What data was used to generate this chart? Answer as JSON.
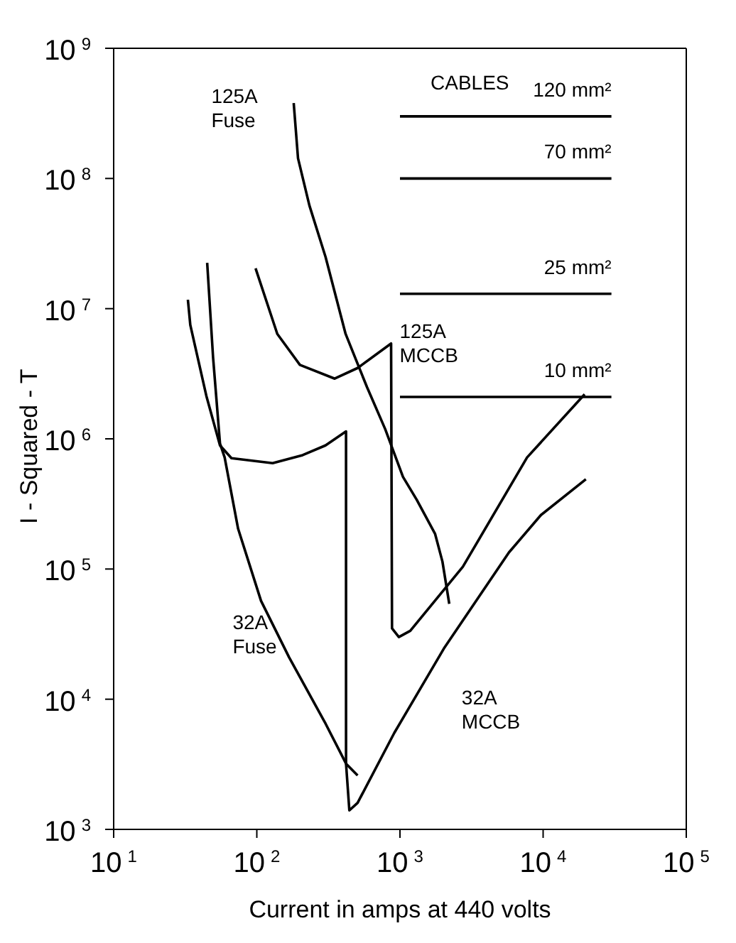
{
  "chart_data": {
    "type": "line",
    "xlabel": "Current in amps at 440 volts",
    "ylabel": "I - Squared - T",
    "log": "xy",
    "legend": false,
    "marker": "none",
    "line_style": "solid",
    "xlim": [
      10,
      100000
    ],
    "ylim": [
      1000,
      1000000000
    ],
    "xticks": [
      {
        "value": 10,
        "label": "10$^{1}$"
      },
      {
        "value": 100,
        "label": "10$^{2}$"
      },
      {
        "value": 1000,
        "label": "10$^{3}$"
      },
      {
        "value": 10000,
        "label": "10$^{4}$"
      },
      {
        "value": 100000,
        "label": "10$^{5}$"
      }
    ],
    "yticks": [
      {
        "value": 1000,
        "label": "10$^{3}$"
      },
      {
        "value": 10000,
        "label": "10$^{4}$"
      },
      {
        "value": 100000,
        "label": "10$^{5}$"
      },
      {
        "value": 1000000,
        "label": "10$^{6}$"
      },
      {
        "value": 10000000,
        "label": "10$^{7}$"
      },
      {
        "value": 100000000,
        "label": "10$^{8}$"
      },
      {
        "value": 1000000000,
        "label": "10$^{9}$"
      }
    ],
    "annotations": [
      "CABLES"
    ],
    "series": [
      {
        "name": "125A Fuse",
        "color": "#000000",
        "x": [
          181,
          194,
          233,
          302,
          417,
          588,
          788,
          1050,
          1310,
          1760,
          1980,
          2210
        ],
        "values": [
          380000000,
          143000000,
          62000000,
          25000000,
          6400000,
          2500000,
          1190000,
          510000,
          340000,
          186000,
          114000,
          54000
        ]
      },
      {
        "name": "32A Fuse",
        "color": "#000000",
        "x": [
          45,
          49.5,
          55.3,
          59.6,
          74,
          107,
          168,
          302,
          420,
          506
        ],
        "values": [
          22500000,
          4200000,
          920000,
          720000,
          204000,
          57000,
          21000,
          6500,
          3200,
          2600
        ]
      },
      {
        "name": "32A MCCB",
        "color": "#000000",
        "x": [
          33,
          34.3,
          44.4,
          55.3,
          66.5,
          129,
          209,
          302,
          420,
          420,
          443,
          506,
          912,
          2050,
          5770,
          9660,
          19900
        ],
        "values": [
          11700000,
          7500000,
          2140000,
          890000,
          710000,
          650000,
          750000,
          890000,
          1140000,
          3200,
          1400,
          1600,
          5500,
          25000,
          134000,
          260000,
          490000
        ]
      },
      {
        "name": "125A MCCB",
        "color": "#000000",
        "x": [
          98,
          139,
          200,
          350,
          506,
          867,
          880,
          982,
          1180,
          2750,
          7730,
          19500
        ],
        "values": [
          20400000,
          6400000,
          3700000,
          2900000,
          3500000,
          5400000,
          35000,
          30000,
          33500,
          104000,
          720000,
          2200000
        ]
      },
      {
        "name": "120 mm²",
        "color": "#000000",
        "x": [
          1000,
          30000
        ],
        "values": [
          300000000,
          300000000
        ]
      },
      {
        "name": "70 mm²",
        "color": "#000000",
        "x": [
          1000,
          30000
        ],
        "values": [
          100000000,
          100000000
        ]
      },
      {
        "name": "25 mm²",
        "color": "#000000",
        "x": [
          1000,
          30000
        ],
        "values": [
          13000000,
          13000000
        ]
      },
      {
        "name": "10 mm²",
        "color": "#000000",
        "x": [
          1000,
          30000
        ],
        "values": [
          2100000,
          2100000
        ]
      }
    ]
  }
}
